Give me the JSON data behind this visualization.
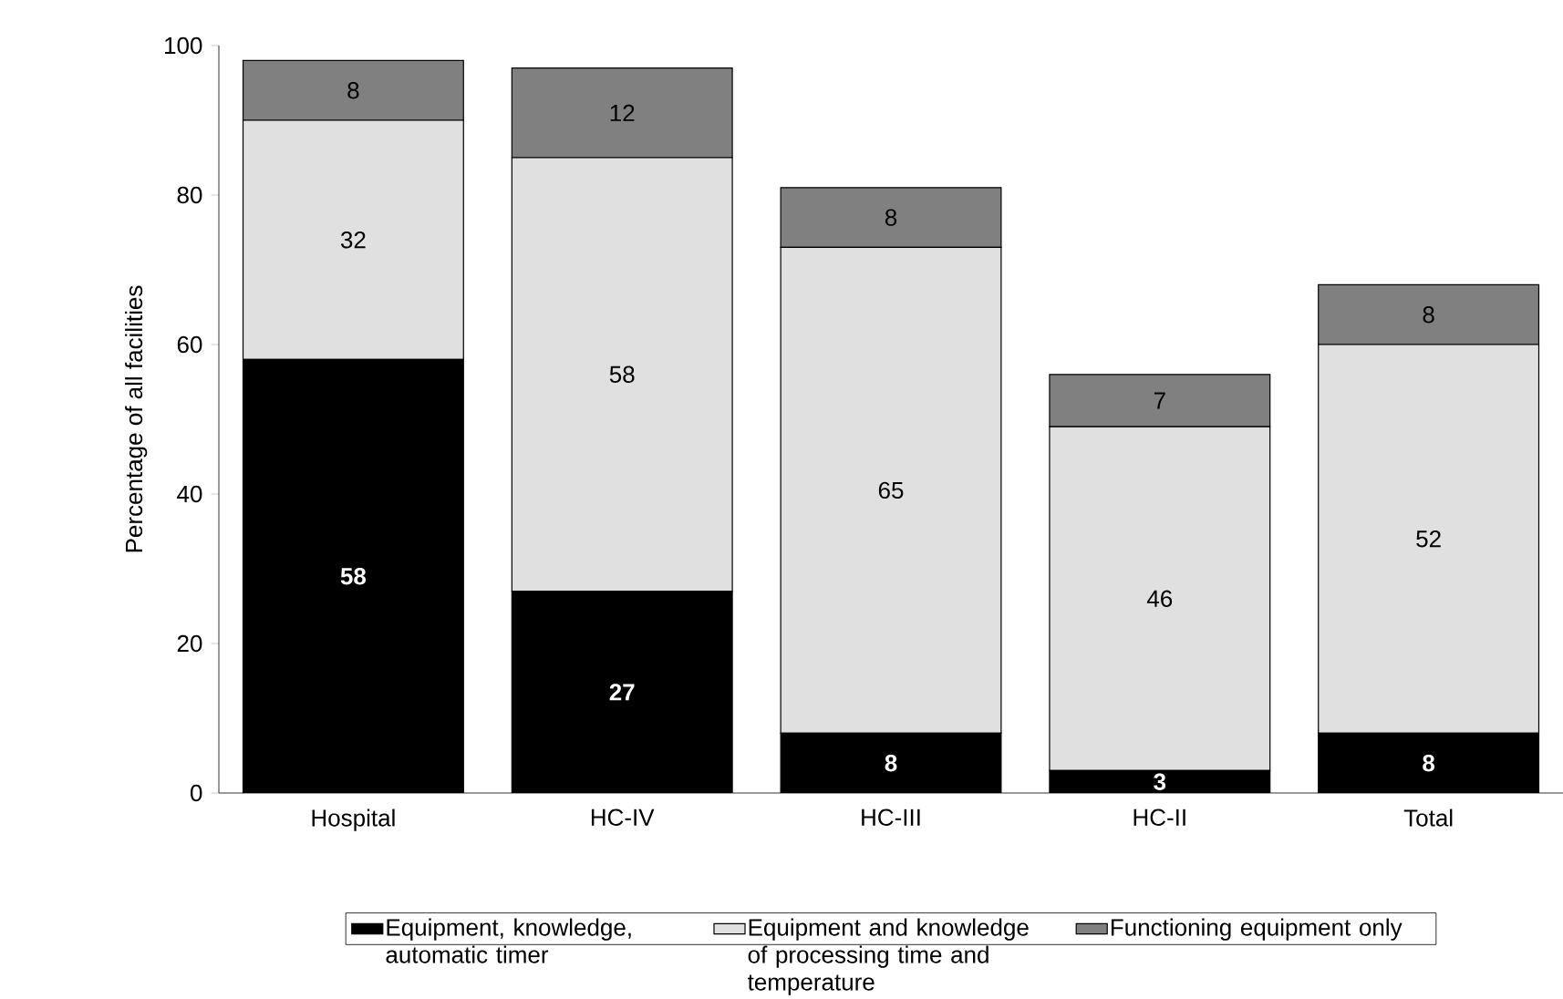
{
  "chart_data": {
    "type": "bar",
    "stacked": true,
    "ylabel": "Percentage of all facilities",
    "categories": [
      "Hospital",
      "HC-IV",
      "HC-III",
      "HC-II",
      "Total"
    ],
    "series": [
      {
        "name": "Equipment, knowledge, automatic timer",
        "color": "#000000",
        "values": [
          58,
          27,
          8,
          3,
          8
        ]
      },
      {
        "name": "Equipment and knowledge of processing time and temperature",
        "color": "#e0e0e0",
        "values": [
          32,
          58,
          65,
          46,
          52
        ]
      },
      {
        "name": "Functioning equipment only",
        "color": "#808080",
        "values": [
          8,
          12,
          8,
          7,
          8
        ]
      }
    ],
    "ylim": [
      0,
      100
    ],
    "yticks": [
      0,
      20,
      40,
      60,
      80,
      100
    ],
    "data_labels": true,
    "legend": "bottom"
  }
}
